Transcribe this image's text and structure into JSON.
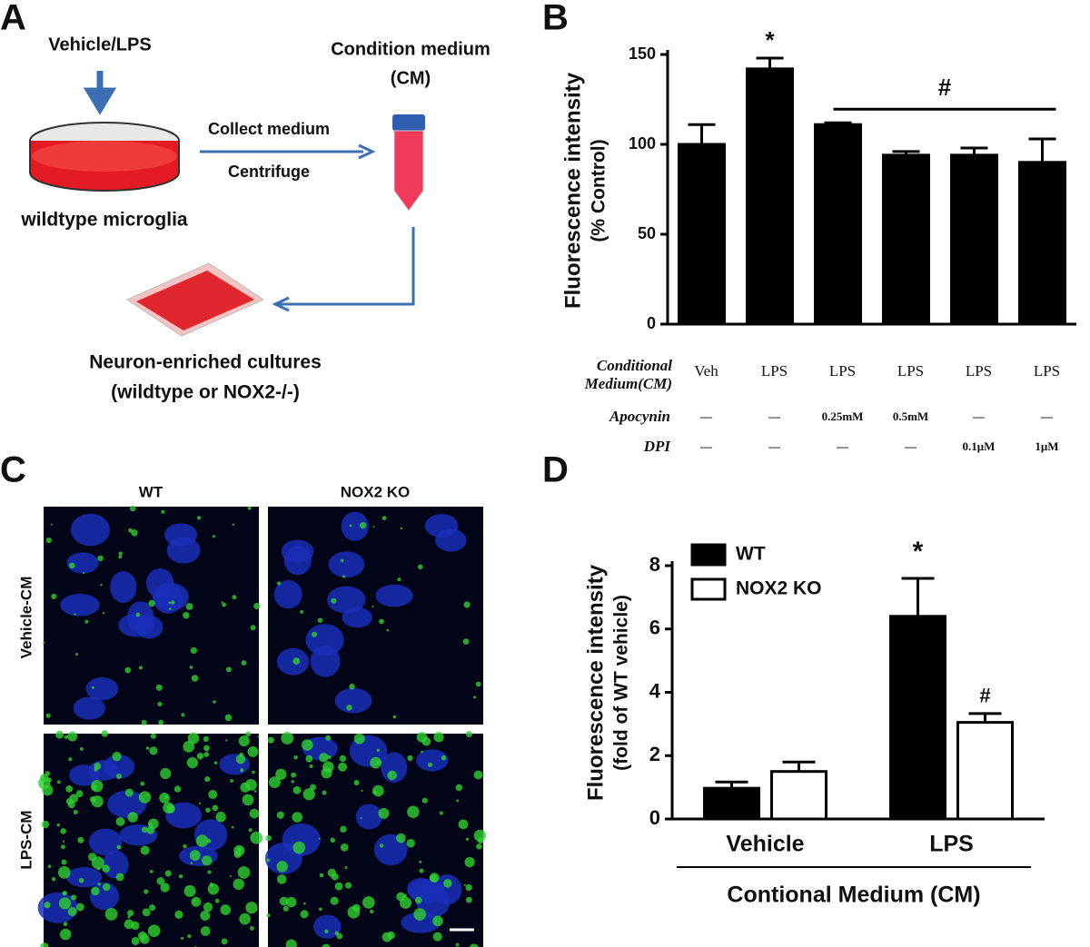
{
  "panels": {
    "a": "A",
    "b": "B",
    "c": "C",
    "d": "D"
  },
  "diagram": {
    "vehicle_lps": "Vehicle/LPS",
    "condition_medium": "Condition medium",
    "cm": "(CM)",
    "collect": "Collect medium",
    "centrifuge": "Centrifuge",
    "microglia": "wildtype microglia",
    "neuron_line1": "Neuron-enriched cultures",
    "neuron_line2": "(wildtype or NOX2-/-)"
  },
  "images": {
    "columns": [
      "WT",
      "NOX2 KO"
    ],
    "rows": [
      "Vehicle-CM",
      "LPS-CM"
    ]
  },
  "chart_data": [
    {
      "type": "bar",
      "ylabel": [
        "Fluorescence intensity",
        "(% Control)"
      ],
      "categories": [
        "Veh",
        "LPS",
        "LPS",
        "LPS",
        "LPS",
        "LPS"
      ],
      "values": [
        100,
        142,
        111,
        94,
        94,
        90
      ],
      "errors": [
        11,
        6,
        1,
        2,
        4,
        13
      ],
      "color": "#000000",
      "ylim": [
        0,
        150
      ],
      "yticks": [
        0,
        50,
        100,
        150
      ],
      "annotations": [
        "*",
        "#"
      ],
      "row_label": [
        "Conditional",
        "Medium(CM)"
      ],
      "treatments": [
        {
          "name": "Apocynin",
          "cells": [
            "—",
            "—",
            "0.25mM",
            "0.5mM",
            "—",
            "—"
          ]
        },
        {
          "name": "DPI",
          "cells": [
            "—",
            "—",
            "—",
            "—",
            "0.1μM",
            "1μM"
          ]
        }
      ]
    },
    {
      "type": "grouped-bar",
      "ylabel": [
        "Fluorescence intensity",
        "(fold of WT vehicle)"
      ],
      "xlabel": "Contional Medium (CM)",
      "categories": [
        "Vehicle",
        "LPS"
      ],
      "series": [
        {
          "name": "WT",
          "color": "#000000",
          "values": [
            0.97,
            6.4
          ],
          "errors": [
            0.2,
            1.2
          ]
        },
        {
          "name": "NOX2 KO",
          "color": "#ffffff",
          "values": [
            1.5,
            3.05
          ],
          "errors": [
            0.3,
            0.28
          ]
        }
      ],
      "ylim": [
        0,
        8
      ],
      "yticks": [
        0,
        2,
        4,
        6,
        8
      ],
      "annotations": [
        "*",
        "#"
      ],
      "legend": "upper left"
    }
  ]
}
